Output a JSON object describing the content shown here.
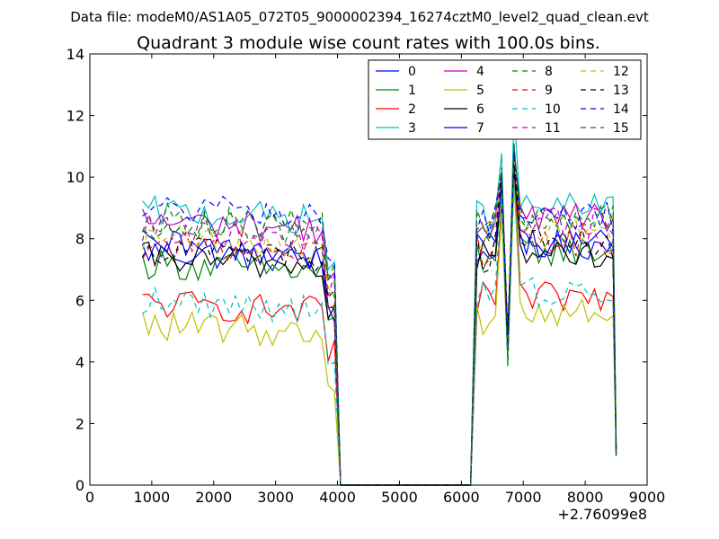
{
  "chart_data": {
    "type": "line",
    "suptitle": "Data file: modeM0/AS1A05_072T05_9000002394_16274cztM0_level2_quad_clean.evt",
    "title": "Quadrant 3 module wise count rates with 100.0s bins.",
    "xlabel": "",
    "ylabel": "",
    "x_offset_label": "+2.76099e8",
    "xlim": [
      0,
      9000
    ],
    "ylim": [
      0,
      14
    ],
    "x_ticks": [
      0,
      1000,
      2000,
      3000,
      4000,
      5000,
      6000,
      7000,
      8000,
      9000
    ],
    "y_ticks": [
      0,
      2,
      4,
      6,
      8,
      10,
      12,
      14
    ],
    "grid": false,
    "legend_position": "top-right",
    "legend_columns": 4,
    "colors": {
      "blue": "#0000ff",
      "green": "#008000",
      "red": "#ff0000",
      "cyan": "#00bfbf",
      "magenta": "#bf00bf",
      "olive": "#bfbf00",
      "black": "#000000"
    },
    "series": [
      {
        "name": "0",
        "color": "blue",
        "dash": false,
        "seg1_mean": 7.6,
        "seg2_mean": 7.8
      },
      {
        "name": "1",
        "color": "green",
        "dash": false,
        "seg1_mean": 7.2,
        "seg2_mean": 7.6
      },
      {
        "name": "2",
        "color": "red",
        "dash": false,
        "seg1_mean": 5.9,
        "seg2_mean": 6.1
      },
      {
        "name": "3",
        "color": "cyan",
        "dash": false,
        "seg1_mean": 8.9,
        "seg2_mean": 9.0
      },
      {
        "name": "4",
        "color": "magenta",
        "dash": false,
        "seg1_mean": 8.6,
        "seg2_mean": 8.7
      },
      {
        "name": "5",
        "color": "olive",
        "dash": false,
        "seg1_mean": 5.2,
        "seg2_mean": 5.6
      },
      {
        "name": "6",
        "color": "black",
        "dash": false,
        "seg1_mean": 7.4,
        "seg2_mean": 7.5
      },
      {
        "name": "7",
        "color": "blue",
        "dash": false,
        "seg1_mean": 7.8,
        "seg2_mean": 7.9
      },
      {
        "name": "8",
        "color": "green",
        "dash": true,
        "seg1_mean": 8.7,
        "seg2_mean": 8.8
      },
      {
        "name": "9",
        "color": "red",
        "dash": true,
        "seg1_mean": 7.8,
        "seg2_mean": 7.9
      },
      {
        "name": "10",
        "color": "cyan",
        "dash": true,
        "seg1_mean": 6.0,
        "seg2_mean": 6.3
      },
      {
        "name": "11",
        "color": "magenta",
        "dash": true,
        "seg1_mean": 8.3,
        "seg2_mean": 8.5
      },
      {
        "name": "12",
        "color": "olive",
        "dash": true,
        "seg1_mean": 8.0,
        "seg2_mean": 8.2
      },
      {
        "name": "13",
        "color": "black",
        "dash": true,
        "seg1_mean": 7.7,
        "seg2_mean": 7.8
      },
      {
        "name": "14",
        "color": "blue",
        "dash": true,
        "seg1_mean": 9.0,
        "seg2_mean": 8.7
      },
      {
        "name": "15",
        "color": "green",
        "dash": true,
        "seg1_mean": 8.5,
        "seg2_mean": 8.6
      }
    ],
    "shape": {
      "bin_seconds": 100,
      "seg1_start": 850,
      "seg1_end": 3950,
      "drop_to_zero_at": 4050,
      "zero_until": 6150,
      "seg2_start": 6250,
      "seg2_end": 8450,
      "final_bin": 8500,
      "final_value": 1.2,
      "peak1_x": 6650,
      "peak1_value": 10.5,
      "dip_x": 6750,
      "dip_value": 3.8,
      "peak2_x": 6850,
      "peak2_value": 11.2,
      "peak_scale": {
        "3": 12.2
      }
    }
  }
}
